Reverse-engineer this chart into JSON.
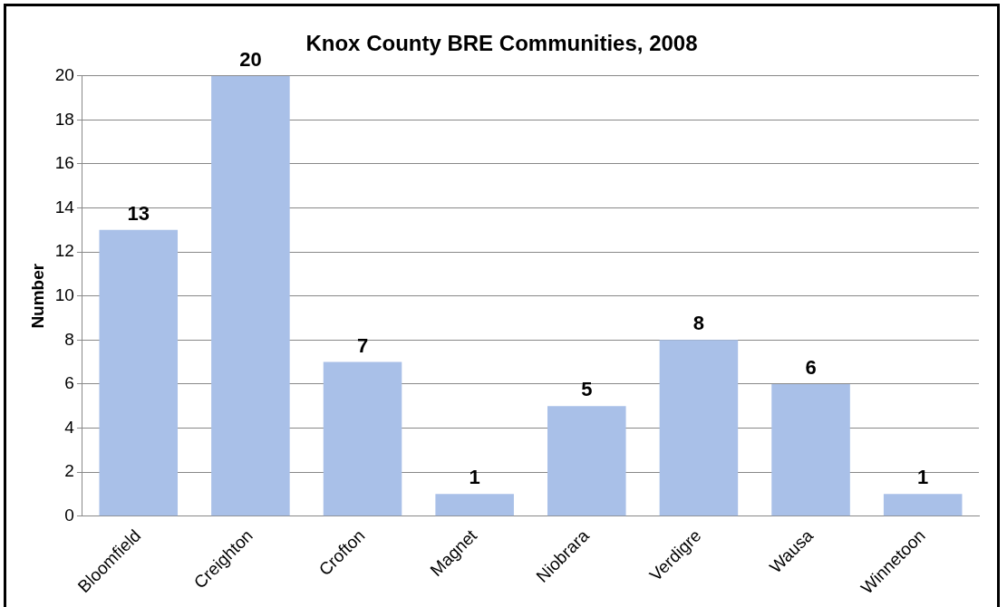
{
  "chart_data": {
    "type": "bar",
    "title": "Knox County BRE Communities, 2008",
    "ylabel": "Number",
    "categories": [
      "Bloomfield",
      "Creighton",
      "Crofton",
      "Magnet",
      "Niobrara",
      "Verdigre",
      "Wausa",
      "Winnetoon"
    ],
    "values": [
      13,
      20,
      7,
      1,
      5,
      8,
      6,
      1
    ],
    "color": "#a9c0e8",
    "ylim": [
      0,
      20
    ],
    "yticks": [
      0,
      2,
      4,
      6,
      8,
      10,
      12,
      14,
      16,
      18,
      20
    ],
    "grid": "y",
    "data_labels": true
  }
}
